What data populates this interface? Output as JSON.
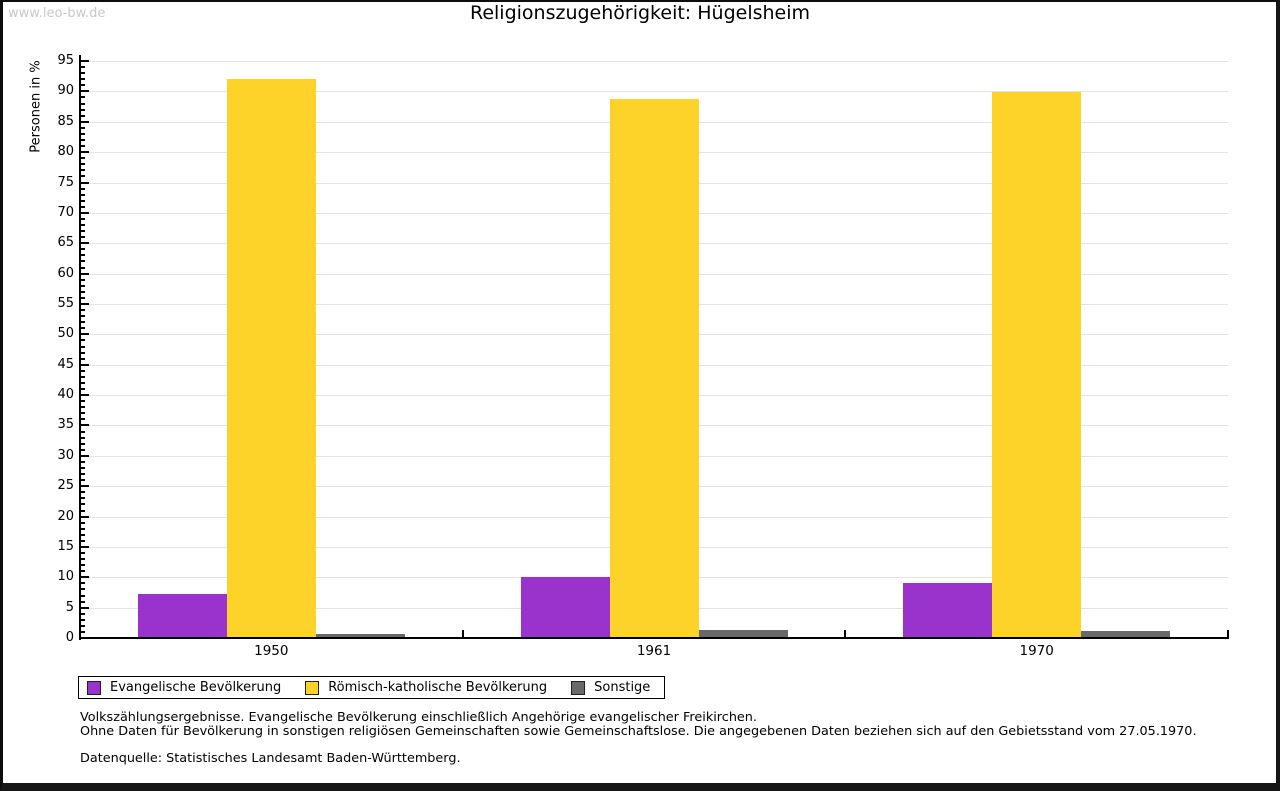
{
  "watermark": "www.leo-bw.de",
  "chart_data": {
    "type": "bar",
    "title": "Religionszugehörigkeit: Hügelsheim",
    "ylabel": "Personen in %",
    "xlabel": "",
    "categories": [
      "1950",
      "1961",
      "1970"
    ],
    "series": [
      {
        "name": "Evangelische Bevölkerung",
        "color": "#9933cc",
        "values": [
          7.3,
          10.0,
          9.0
        ]
      },
      {
        "name": "Römisch-katholische Bevölkerung",
        "color": "#fdd32a",
        "values": [
          92.0,
          88.7,
          89.9
        ]
      },
      {
        "name": "Sonstige",
        "color": "#696969",
        "values": [
          0.7,
          1.4,
          1.1
        ]
      }
    ],
    "ylim": [
      0,
      96
    ],
    "ytick_step": 5,
    "minor_tick_step": 1,
    "grid": true,
    "gridline_color": "#e4e4e4",
    "legend_position": "bottom-left"
  },
  "footnotes": [
    "Volkszählungsergebnisse. Evangelische Bevölkerung einschließlich Angehörige evangelischer Freikirchen.",
    "Ohne Daten für Bevölkerung in sonstigen religiösen Gemeinschaften sowie Gemeinschaftslose. Die angegebenen Daten beziehen sich auf den Gebietsstand vom 27.05.1970."
  ],
  "source": "Datenquelle: Statistisches Landesamt Baden-Württemberg."
}
